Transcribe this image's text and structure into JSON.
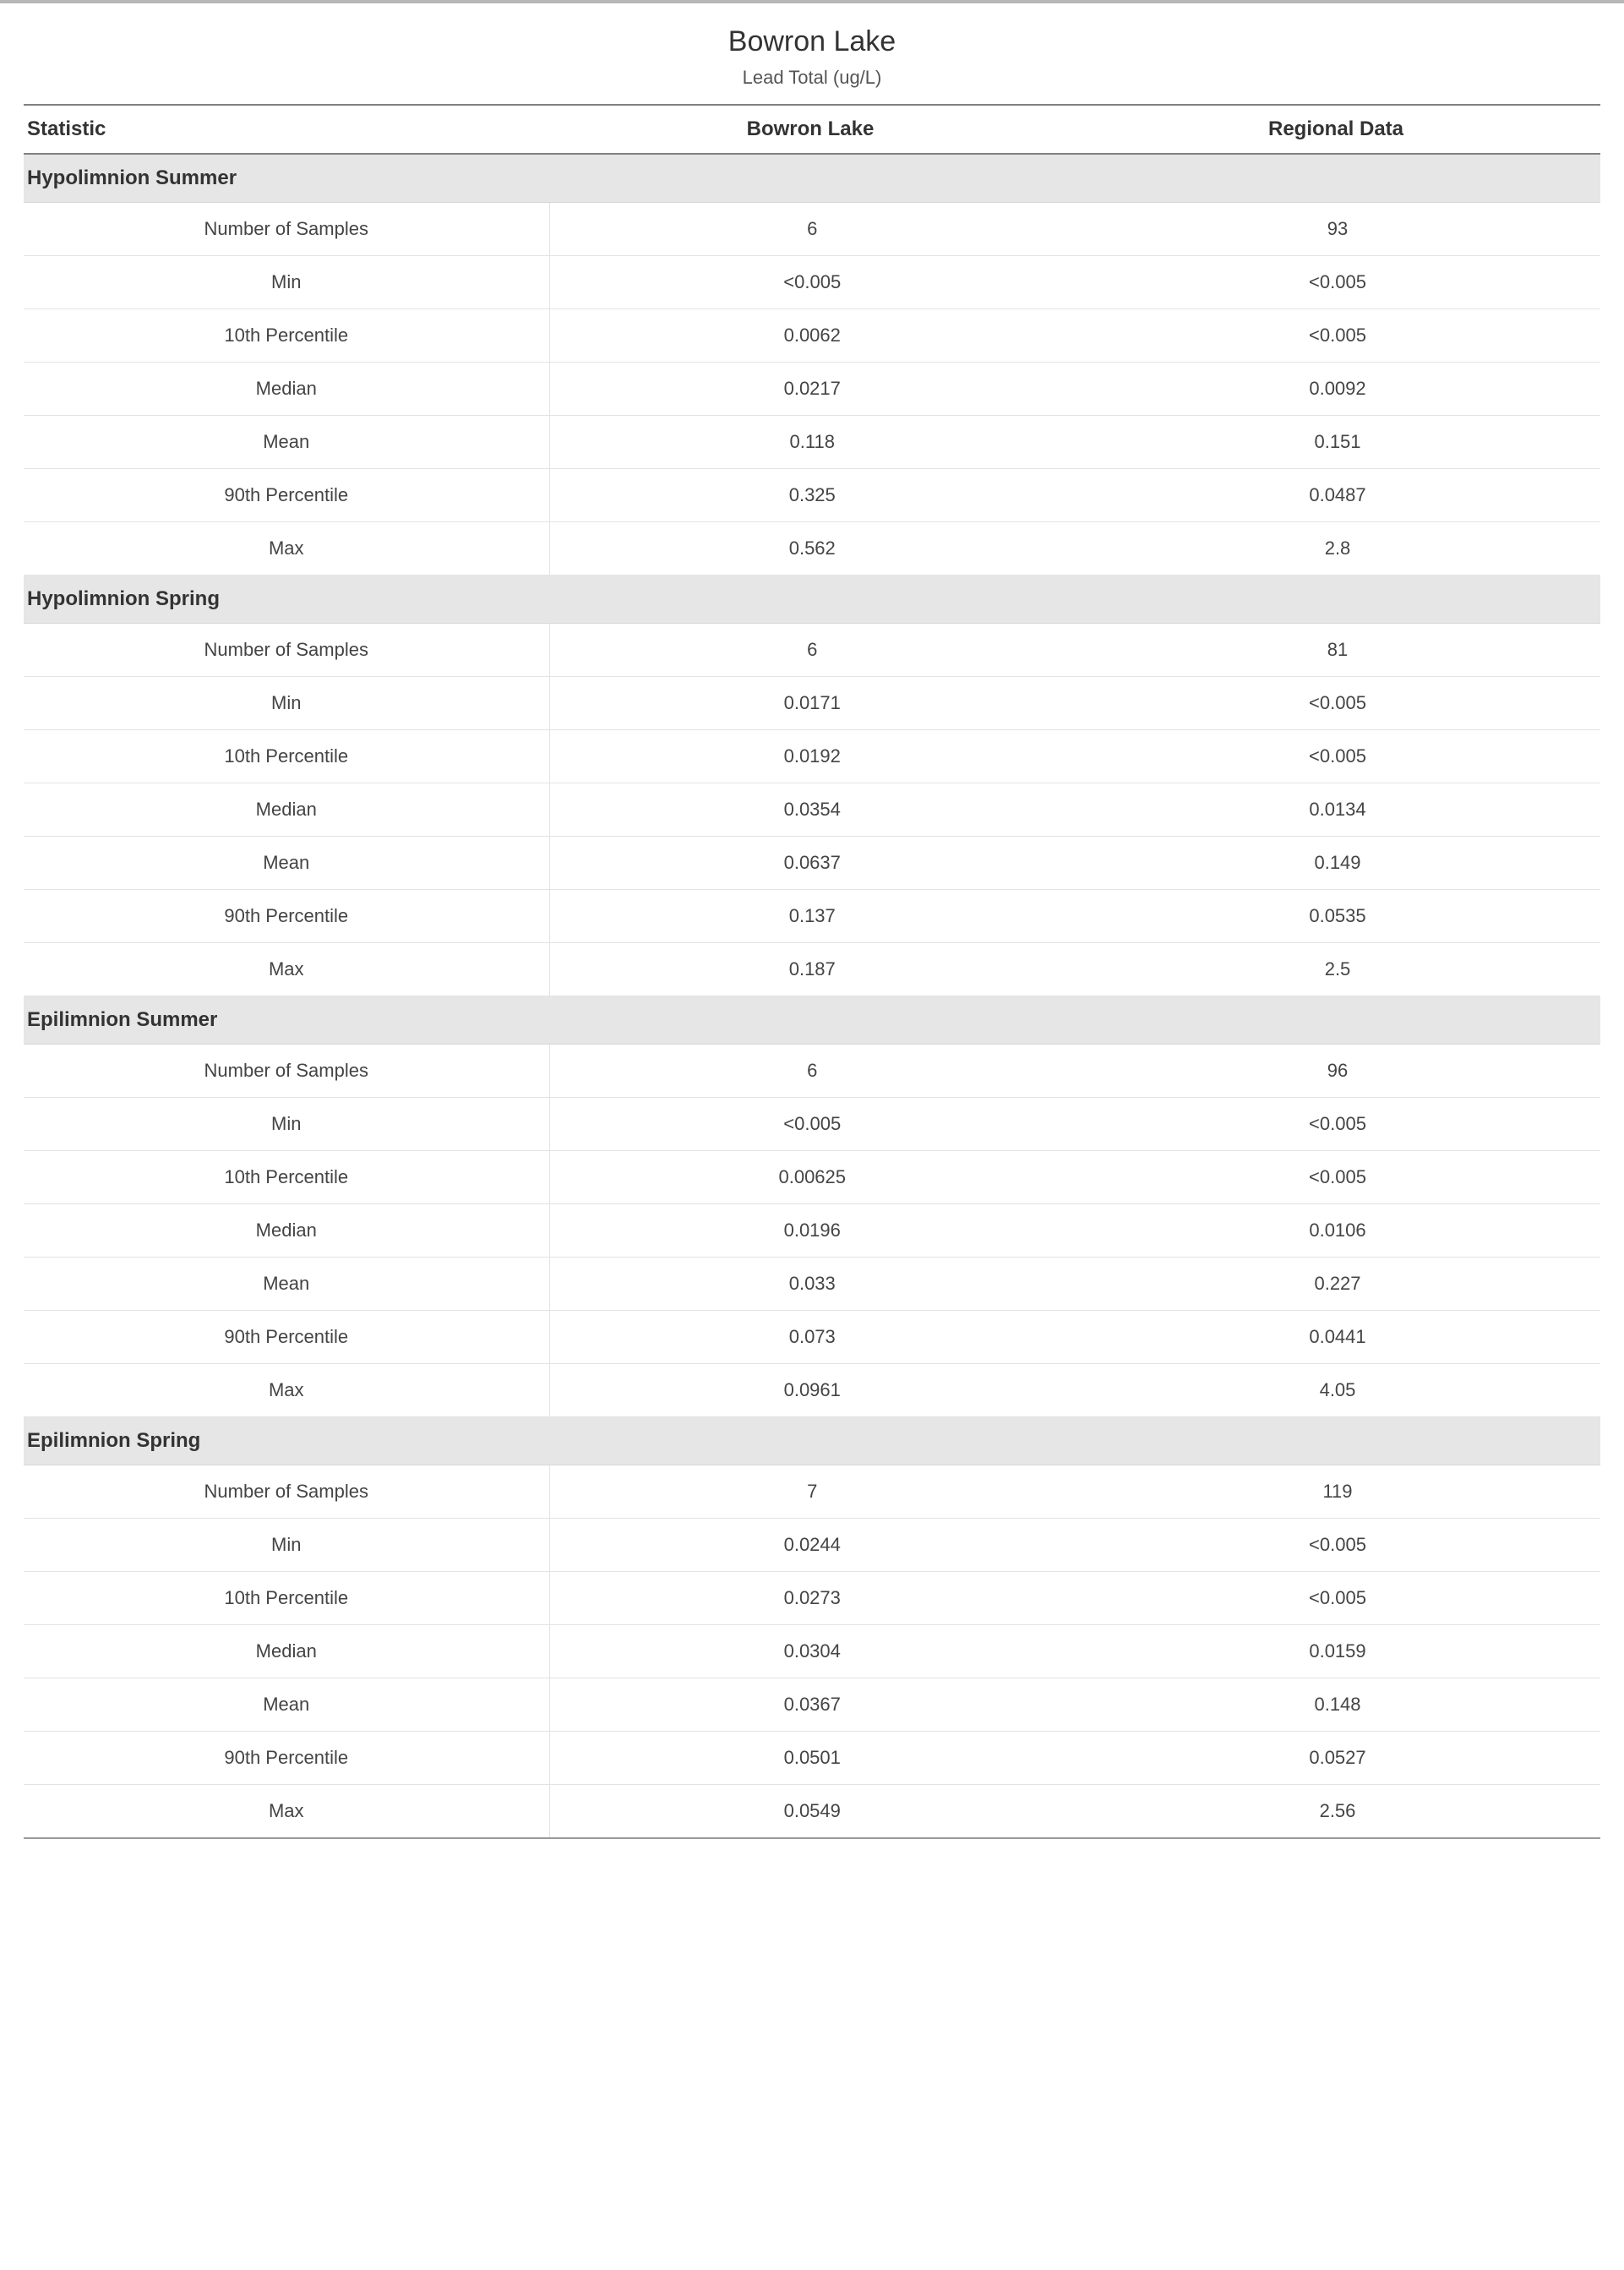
{
  "page": {
    "title": "Bowron Lake",
    "subtitle": "Lead Total (ug/L)",
    "colors": {
      "top_rule": "#b7b7b7",
      "header_rule": "#818181",
      "section_bg": "#e6e6e6",
      "row_border": "#e3e3e3",
      "text": "#333333"
    },
    "fontsize": {
      "title": 34,
      "subtitle": 22,
      "header": 24,
      "section": 24,
      "cell": 22
    }
  },
  "table": {
    "columns": [
      "Statistic",
      "Bowron Lake",
      "Regional Data"
    ],
    "column_widths_pct": [
      33.3,
      33.3,
      33.4
    ],
    "sections": [
      {
        "label": "Hypolimnion Summer",
        "rows": [
          [
            "Number of Samples",
            "6",
            "93"
          ],
          [
            "Min",
            "<0.005",
            "<0.005"
          ],
          [
            "10th Percentile",
            "0.0062",
            "<0.005"
          ],
          [
            "Median",
            "0.0217",
            "0.0092"
          ],
          [
            "Mean",
            "0.118",
            "0.151"
          ],
          [
            "90th Percentile",
            "0.325",
            "0.0487"
          ],
          [
            "Max",
            "0.562",
            "2.8"
          ]
        ]
      },
      {
        "label": "Hypolimnion Spring",
        "rows": [
          [
            "Number of Samples",
            "6",
            "81"
          ],
          [
            "Min",
            "0.0171",
            "<0.005"
          ],
          [
            "10th Percentile",
            "0.0192",
            "<0.005"
          ],
          [
            "Median",
            "0.0354",
            "0.0134"
          ],
          [
            "Mean",
            "0.0637",
            "0.149"
          ],
          [
            "90th Percentile",
            "0.137",
            "0.0535"
          ],
          [
            "Max",
            "0.187",
            "2.5"
          ]
        ]
      },
      {
        "label": "Epilimnion Summer",
        "rows": [
          [
            "Number of Samples",
            "6",
            "96"
          ],
          [
            "Min",
            "<0.005",
            "<0.005"
          ],
          [
            "10th Percentile",
            "0.00625",
            "<0.005"
          ],
          [
            "Median",
            "0.0196",
            "0.0106"
          ],
          [
            "Mean",
            "0.033",
            "0.227"
          ],
          [
            "90th Percentile",
            "0.073",
            "0.0441"
          ],
          [
            "Max",
            "0.0961",
            "4.05"
          ]
        ]
      },
      {
        "label": "Epilimnion Spring",
        "rows": [
          [
            "Number of Samples",
            "7",
            "119"
          ],
          [
            "Min",
            "0.0244",
            "<0.005"
          ],
          [
            "10th Percentile",
            "0.0273",
            "<0.005"
          ],
          [
            "Median",
            "0.0304",
            "0.0159"
          ],
          [
            "Mean",
            "0.0367",
            "0.148"
          ],
          [
            "90th Percentile",
            "0.0501",
            "0.0527"
          ],
          [
            "Max",
            "0.0549",
            "2.56"
          ]
        ]
      }
    ]
  }
}
